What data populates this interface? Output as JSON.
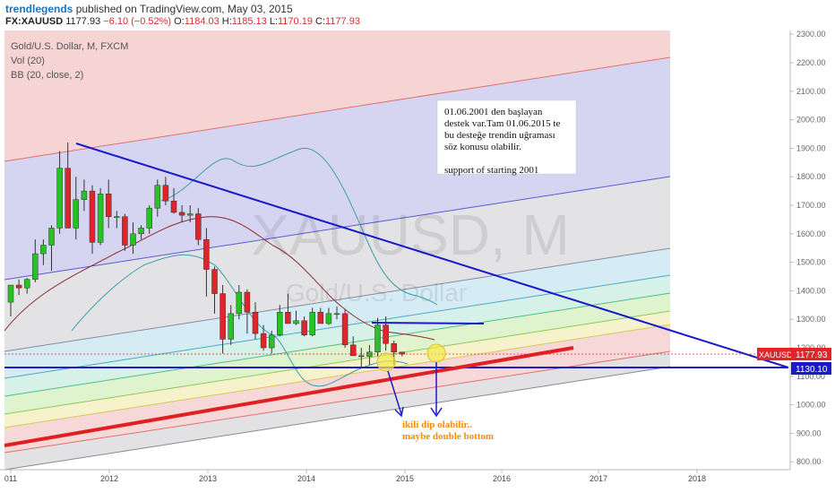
{
  "header": {
    "author": "trendlegends",
    "published_text": "published on TradingView.com, May 03, 2015",
    "symbol": "FX:XAUUSD",
    "last_price": "1177.93",
    "change": "−6.10 (−0.52%)",
    "o_label": "O:",
    "open": "1184.03",
    "h_label": "H:",
    "high": "1185.13",
    "l_label": "L:",
    "low": "1170.19",
    "c_label": "C:",
    "close": "1177.93"
  },
  "legend": {
    "title": "Gold/U.S. Dollar, M, FXCM",
    "vol": "Vol (20)",
    "bb": "BB (20, close, 2)"
  },
  "watermark": {
    "symbol": "XAUUSD, M",
    "name": "Gold/U.S. Dollar"
  },
  "price_tags": {
    "xauusd_label": "XAUUSD",
    "xauusd_value": "1177.93",
    "support_value": "1130.10"
  },
  "annotations": {
    "note_lines": [
      "01.06.2001 den  başlayan",
      "destek var.Tam 01.06.2015 te",
      "bu desteğe trendin uğraması",
      "söz konusu olabilir.",
      "",
      "support of starting 2001"
    ],
    "bottom_lines": [
      "ikili dip olabilir..",
      "maybe double bottom"
    ]
  },
  "colors": {
    "up": "#26c226",
    "down": "#e0242a",
    "trend_blue": "#1a1acb",
    "support_red": "#e02020",
    "bb": "#3a9fa6",
    "ma": "#8b2c2c"
  },
  "chart_data": {
    "type": "candlestick",
    "y_axis": {
      "ticks": [
        "2300.00",
        "2200.00",
        "2100.00",
        "2000.00",
        "1900.00",
        "1800.00",
        "1700.00",
        "1600.00",
        "1500.00",
        "1400.00",
        "1300.00",
        "1200.00",
        "1100.00",
        "1000.00",
        "900.00",
        "800.00"
      ],
      "ylim": [
        780,
        2310
      ]
    },
    "x_axis": {
      "ticks": [
        "011",
        "2012",
        "2013",
        "2014",
        "2015",
        "2016",
        "2017",
        "2018"
      ]
    },
    "candles": [
      {
        "o": 1360,
        "h": 1420,
        "l": 1310,
        "c": 1420
      },
      {
        "o": 1420,
        "h": 1440,
        "l": 1385,
        "c": 1410
      },
      {
        "o": 1410,
        "h": 1445,
        "l": 1390,
        "c": 1440
      },
      {
        "o": 1440,
        "h": 1580,
        "l": 1430,
        "c": 1530
      },
      {
        "o": 1530,
        "h": 1580,
        "l": 1490,
        "c": 1560
      },
      {
        "o": 1560,
        "h": 1630,
        "l": 1470,
        "c": 1620
      },
      {
        "o": 1620,
        "h": 1890,
        "l": 1600,
        "c": 1830
      },
      {
        "o": 1830,
        "h": 1920,
        "l": 1630,
        "c": 1620
      },
      {
        "o": 1620,
        "h": 1800,
        "l": 1580,
        "c": 1720
      },
      {
        "o": 1720,
        "h": 1790,
        "l": 1680,
        "c": 1750
      },
      {
        "o": 1750,
        "h": 1770,
        "l": 1530,
        "c": 1570
      },
      {
        "o": 1570,
        "h": 1760,
        "l": 1560,
        "c": 1740
      },
      {
        "o": 1740,
        "h": 1790,
        "l": 1620,
        "c": 1660
      },
      {
        "o": 1660,
        "h": 1680,
        "l": 1620,
        "c": 1660
      },
      {
        "o": 1660,
        "h": 1670,
        "l": 1540,
        "c": 1560
      },
      {
        "o": 1560,
        "h": 1640,
        "l": 1530,
        "c": 1600
      },
      {
        "o": 1600,
        "h": 1630,
        "l": 1580,
        "c": 1620
      },
      {
        "o": 1620,
        "h": 1700,
        "l": 1600,
        "c": 1690
      },
      {
        "o": 1690,
        "h": 1790,
        "l": 1660,
        "c": 1770
      },
      {
        "o": 1770,
        "h": 1800,
        "l": 1700,
        "c": 1715
      },
      {
        "o": 1715,
        "h": 1760,
        "l": 1670,
        "c": 1675
      },
      {
        "o": 1675,
        "h": 1700,
        "l": 1640,
        "c": 1665
      },
      {
        "o": 1665,
        "h": 1700,
        "l": 1640,
        "c": 1670
      },
      {
        "o": 1670,
        "h": 1690,
        "l": 1560,
        "c": 1580
      },
      {
        "o": 1580,
        "h": 1620,
        "l": 1380,
        "c": 1475
      },
      {
        "o": 1475,
        "h": 1485,
        "l": 1320,
        "c": 1390
      },
      {
        "o": 1390,
        "h": 1420,
        "l": 1180,
        "c": 1230
      },
      {
        "o": 1230,
        "h": 1350,
        "l": 1210,
        "c": 1320
      },
      {
        "o": 1320,
        "h": 1420,
        "l": 1300,
        "c": 1395
      },
      {
        "o": 1395,
        "h": 1405,
        "l": 1250,
        "c": 1325
      },
      {
        "o": 1325,
        "h": 1360,
        "l": 1230,
        "c": 1250
      },
      {
        "o": 1250,
        "h": 1280,
        "l": 1190,
        "c": 1200
      },
      {
        "o": 1200,
        "h": 1260,
        "l": 1180,
        "c": 1245
      },
      {
        "o": 1245,
        "h": 1350,
        "l": 1240,
        "c": 1325
      },
      {
        "o": 1325,
        "h": 1390,
        "l": 1290,
        "c": 1285
      },
      {
        "o": 1285,
        "h": 1330,
        "l": 1280,
        "c": 1295
      },
      {
        "o": 1295,
        "h": 1310,
        "l": 1240,
        "c": 1245
      },
      {
        "o": 1245,
        "h": 1340,
        "l": 1240,
        "c": 1325
      },
      {
        "o": 1325,
        "h": 1340,
        "l": 1290,
        "c": 1285
      },
      {
        "o": 1285,
        "h": 1340,
        "l": 1280,
        "c": 1320
      },
      {
        "o": 1320,
        "h": 1345,
        "l": 1300,
        "c": 1320
      },
      {
        "o": 1320,
        "h": 1335,
        "l": 1200,
        "c": 1210
      },
      {
        "o": 1210,
        "h": 1240,
        "l": 1180,
        "c": 1172
      },
      {
        "o": 1172,
        "h": 1200,
        "l": 1130,
        "c": 1170
      },
      {
        "o": 1170,
        "h": 1210,
        "l": 1140,
        "c": 1185
      },
      {
        "o": 1185,
        "h": 1305,
        "l": 1170,
        "c": 1280
      },
      {
        "o": 1280,
        "h": 1310,
        "l": 1190,
        "c": 1215
      },
      {
        "o": 1215,
        "h": 1225,
        "l": 1140,
        "c": 1185
      },
      {
        "o": 1185,
        "h": 1185,
        "l": 1170,
        "c": 1178
      }
    ]
  }
}
